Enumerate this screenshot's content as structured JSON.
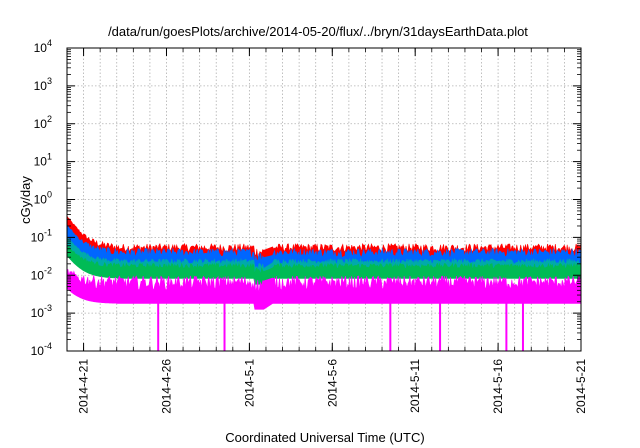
{
  "chart_data": {
    "type": "line",
    "title": "/data/run/goesPlots/archive/2014-05-20/flux/../bryn/31daysEarthData.plot",
    "xlabel": "Coordinated Universal Time (UTC)",
    "ylabel": "cGy/day",
    "scale_y": "log",
    "ylim": [
      0.0001,
      10000
    ],
    "xlim": [
      "2014-04-20",
      "2014-05-21"
    ],
    "grid": true,
    "legend": "none",
    "x_ticks": [
      "2014-4-21",
      "2014-4-26",
      "2014-5-1",
      "2014-5-6",
      "2014-5-11",
      "2014-5-16",
      "2014-5-21"
    ],
    "y_ticks": [
      {
        "mantissa": "10",
        "exp": "4"
      },
      {
        "mantissa": "10",
        "exp": "3"
      },
      {
        "mantissa": "10",
        "exp": "2"
      },
      {
        "mantissa": "10",
        "exp": "1"
      },
      {
        "mantissa": "10",
        "exp": "0"
      },
      {
        "mantissa": "10",
        "exp": "-1"
      },
      {
        "mantissa": "10",
        "exp": "-2"
      },
      {
        "mantissa": "10",
        "exp": "-3"
      },
      {
        "mantissa": "10",
        "exp": "-4"
      }
    ],
    "data_gap": [
      "2014-05-01",
      "2014-05-02"
    ],
    "series": [
      {
        "color": "#ff0000",
        "peak_start": 0.35,
        "level": 0.04,
        "spike_amp": 0.02
      },
      {
        "color": "#0066ff",
        "peak_start": 0.2,
        "level": 0.03,
        "spike_amp": 0.015
      },
      {
        "color": "#00aaaa",
        "peak_start": 0.1,
        "level": 0.02,
        "spike_amp": 0.005
      },
      {
        "color": "#00bb55",
        "peak_start": 0.06,
        "level": 0.015,
        "spike_amp": 0.004
      },
      {
        "color": "#ff00ff",
        "peak_start": 0.01,
        "level": 0.004,
        "spike_amp": 0.004
      }
    ],
    "magenta_dropouts": [
      "2014-04-25",
      "2014-04-29",
      "2014-05-09",
      "2014-05-12",
      "2014-05-16",
      "2014-05-17"
    ]
  }
}
